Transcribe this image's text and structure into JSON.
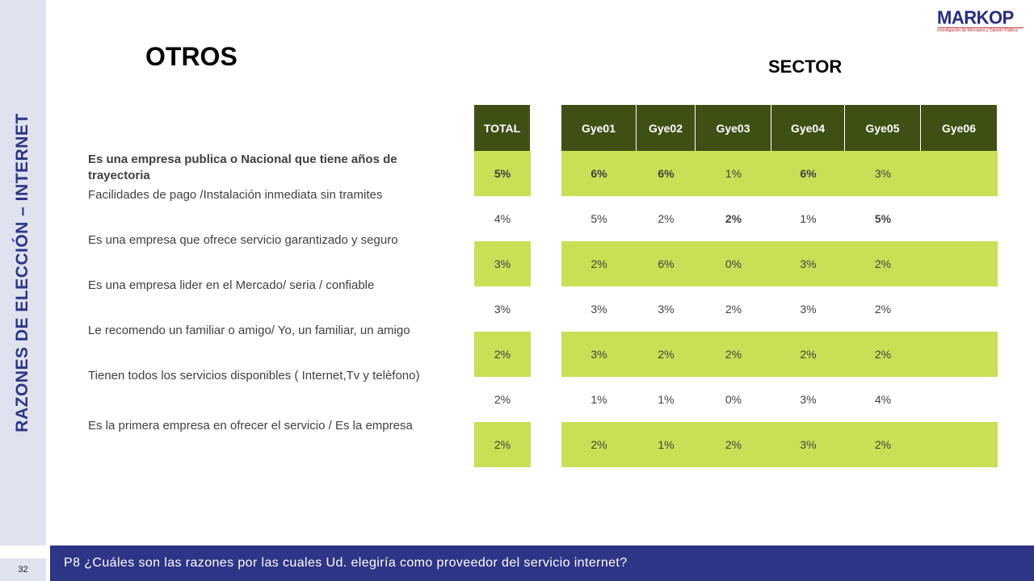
{
  "side_title": "RAZONES DE ELECCIÓN – INTERNET",
  "page_number": "32",
  "title": "OTROS",
  "sector_label": "SECTOR",
  "logo": {
    "text": "MARKOP",
    "subtitle": "Investigación de Mercados y Opinión Pública"
  },
  "footer": "P8 ¿Cuáles son las razones por las cuales Ud. elegiría como proveedor del servicio internet?",
  "table": {
    "total_header": "TOTAL",
    "sector_headers": [
      "Gye01",
      "Gye02",
      "Gye03",
      "Gye04",
      "Gye05",
      "Gye06"
    ],
    "rows": [
      {
        "label": "Es una empresa publica o Nacional  que tiene años de trayectoria",
        "total": "5%",
        "values": [
          "6%",
          "6%",
          "1%",
          "6%",
          "3%",
          ""
        ]
      },
      {
        "label": "Facilidades de pago /Instalación inmediata sin tramites",
        "total": "4%",
        "values": [
          "5%",
          "2%",
          "2%",
          "1%",
          "5%",
          ""
        ]
      },
      {
        "label": "Es una empresa que ofrece servicio garantizado y seguro",
        "total": "3%",
        "values": [
          "2%",
          "6%",
          "0%",
          "3%",
          "2%",
          ""
        ]
      },
      {
        "label": "Es una empresa  lider en el Mercado/ seria / confiable",
        "total": "3%",
        "values": [
          "3%",
          "3%",
          "2%",
          "3%",
          "2%",
          ""
        ]
      },
      {
        "label": "Le recomendo un familiar o amigo/ Yo, un familiar, un amigo",
        "total": "2%",
        "values": [
          "3%",
          "2%",
          "2%",
          "2%",
          "2%",
          ""
        ]
      },
      {
        "label": "Tienen todos los servicios disponibles ( Internet,Tv y telèfono)",
        "total": "2%",
        "values": [
          "1%",
          "1%",
          "0%",
          "3%",
          "4%",
          ""
        ]
      },
      {
        "label": "Es la primera empresa en ofrecer el servicio / Es la empresa",
        "total": "2%",
        "values": [
          "2%",
          "1%",
          "2%",
          "3%",
          "2%",
          ""
        ]
      }
    ]
  }
}
